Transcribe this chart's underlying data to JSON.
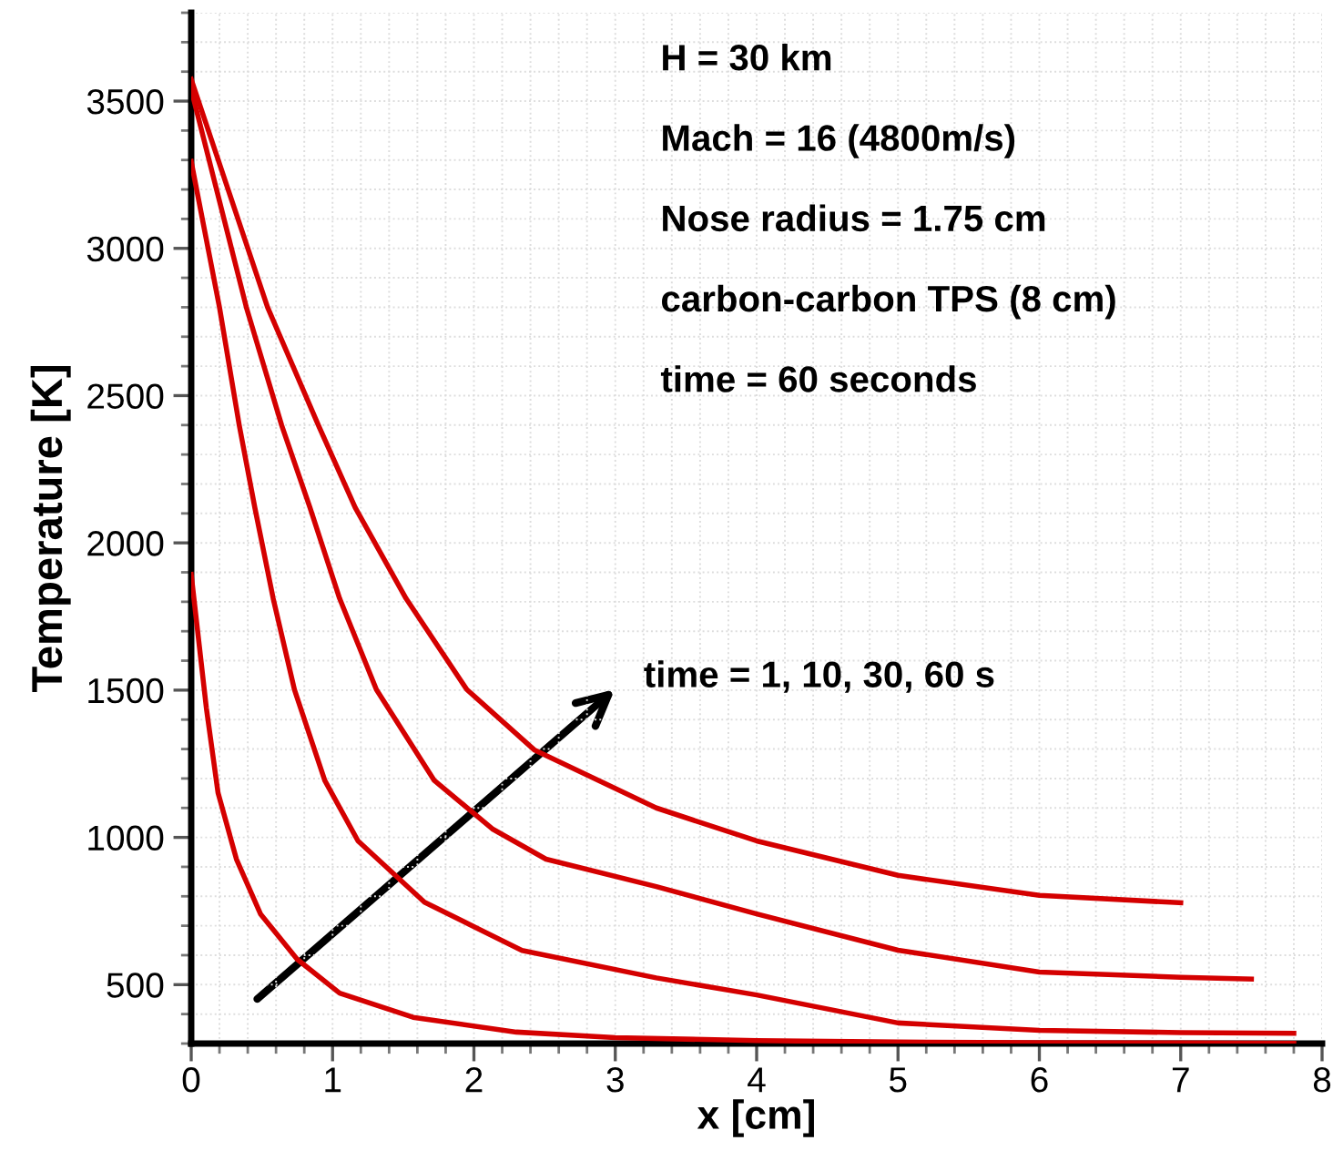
{
  "chart_data": {
    "type": "line",
    "xlabel": "x [cm]",
    "ylabel": "Temperature [K]",
    "xlim": [
      0,
      8
    ],
    "xticks": [
      0,
      1,
      2,
      3,
      4,
      5,
      6,
      7,
      8
    ],
    "ylim": [
      300,
      3800
    ],
    "yticks": [
      500,
      1000,
      1500,
      2000,
      2500,
      3000,
      3500
    ],
    "grid": true,
    "legend": false,
    "marker": "none",
    "line_style": "solid",
    "annotations": [
      "H = 30 km",
      "Mach = 16 (4800m/s)",
      "Nose radius = 1.75 cm",
      "carbon-carbon TPS (8 cm)",
      "time = 60 seconds",
      "time = 1, 10, 30, 60 s"
    ],
    "series": [
      {
        "color": "#d40000",
        "x": [
          0,
          0.107,
          0.19,
          0.32,
          0.49,
          0.75,
          1.05,
          1.57,
          2.3,
          3,
          4,
          5,
          6,
          7,
          7.8
        ],
        "values": [
          1893,
          1440,
          1151,
          926,
          740,
          586,
          471,
          389,
          339,
          320,
          310,
          305,
          303,
          302,
          301
        ]
      },
      {
        "color": "#d40000",
        "x": [
          0,
          0.2,
          0.34,
          0.45,
          0.58,
          0.73,
          0.945,
          1.18,
          1.65,
          2.34,
          3.29,
          4,
          5,
          6,
          7,
          7.8
        ],
        "values": [
          3295,
          2800,
          2399,
          2120,
          1811,
          1502,
          1193,
          988,
          780,
          616,
          523,
          465,
          370,
          345,
          337,
          335
        ]
      },
      {
        "color": "#d40000",
        "x": [
          0,
          0.39,
          0.64,
          0.84,
          1.05,
          1.31,
          1.72,
          2.13,
          2.51,
          3.29,
          4,
          5,
          6,
          7,
          7.5
        ],
        "values": [
          3540,
          2800,
          2399,
          2120,
          1811,
          1502,
          1193,
          1029,
          926,
          833,
          740,
          617,
          543,
          525,
          519
        ]
      },
      {
        "color": "#d40000",
        "x": [
          0,
          0.54,
          0.9,
          1.16,
          1.52,
          1.95,
          2.43,
          3.29,
          4,
          5,
          6,
          7
        ],
        "values": [
          3574,
          2800,
          2399,
          2120,
          1811,
          1502,
          1296,
          1100,
          988,
          871,
          803,
          778
        ]
      }
    ]
  }
}
